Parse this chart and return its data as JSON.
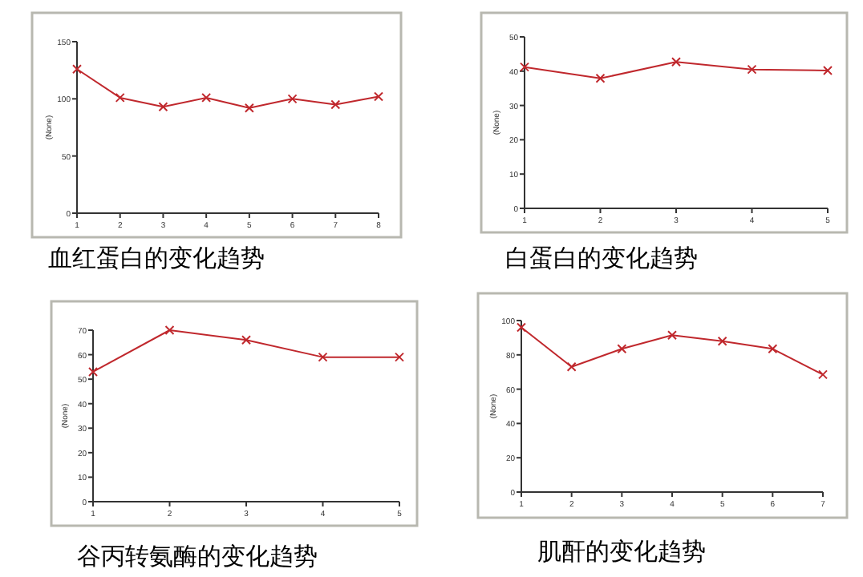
{
  "chart_data": [
    {
      "type": "line",
      "title": "血红蛋白的变化趋势",
      "ylabel": "(None)",
      "x": [
        1,
        2,
        3,
        4,
        5,
        6,
        7,
        8
      ],
      "xlim": [
        1,
        8
      ],
      "xticks": [
        1,
        2,
        3,
        4,
        5,
        6,
        7,
        8
      ],
      "ylim": [
        0,
        150
      ],
      "yticks": [
        0,
        50,
        100,
        150
      ],
      "marker": "cross",
      "grid": false,
      "series": [
        {
          "color": "#c0282d",
          "values": [
            126,
            101,
            93,
            101,
            92,
            100,
            95,
            102
          ]
        }
      ]
    },
    {
      "type": "line",
      "title": "白蛋白的变化趋势",
      "ylabel": "(None)",
      "x": [
        1,
        2,
        3,
        4,
        5
      ],
      "xlim": [
        1,
        5
      ],
      "xticks": [
        1,
        2,
        3,
        4,
        5
      ],
      "ylim": [
        0,
        50
      ],
      "yticks": [
        0,
        10,
        20,
        30,
        40,
        50
      ],
      "marker": "cross",
      "grid": false,
      "series": [
        {
          "color": "#c0282d",
          "values": [
            41.2,
            37.9,
            42.7,
            40.5,
            40.2
          ]
        }
      ]
    },
    {
      "type": "line",
      "title": "谷丙转氨酶的变化趋势",
      "ylabel": "(None)",
      "x": [
        1,
        2,
        3,
        4,
        5
      ],
      "xlim": [
        1,
        5
      ],
      "xticks": [
        1,
        2,
        3,
        4,
        5
      ],
      "ylim": [
        0,
        70
      ],
      "yticks": [
        0,
        10,
        20,
        30,
        40,
        50,
        60,
        70
      ],
      "marker": "cross",
      "grid": false,
      "series": [
        {
          "color": "#c0282d",
          "values": [
            53,
            70,
            66,
            59,
            59
          ]
        }
      ]
    },
    {
      "type": "line",
      "title": "肌酐的变化趋势",
      "ylabel": "(None)",
      "x": [
        1,
        2,
        3,
        4,
        5,
        6,
        7
      ],
      "xlim": [
        1,
        7
      ],
      "xticks": [
        1,
        2,
        3,
        4,
        5,
        6,
        7
      ],
      "ylim": [
        0,
        100
      ],
      "yticks": [
        0,
        20,
        40,
        60,
        80,
        100
      ],
      "marker": "cross",
      "grid": false,
      "series": [
        {
          "color": "#c0282d",
          "values": [
            96,
            73,
            83.5,
            91.5,
            88,
            83.5,
            68.5
          ]
        }
      ]
    }
  ]
}
